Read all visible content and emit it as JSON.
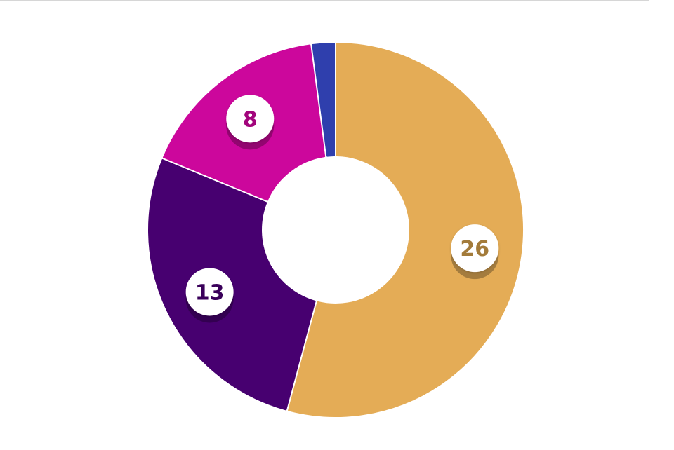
{
  "chart_data": {
    "type": "pie",
    "variant": "donut",
    "title": "",
    "start_angle_deg": 0,
    "direction": "clockwise",
    "slices": [
      {
        "value": 26,
        "label": "26",
        "color": "#E4AC56",
        "label_color": "#A37B3A",
        "show_label": true
      },
      {
        "value": 13,
        "label": "13",
        "color": "#470070",
        "label_color": "#3A005A",
        "show_label": true
      },
      {
        "value": 8,
        "label": "8",
        "color": "#CC079C",
        "label_color": "#A2057C",
        "show_label": true
      },
      {
        "value": 1,
        "label": "1",
        "color": "#2F3FAD",
        "label_color": "#2F3FAD",
        "show_label": false
      }
    ],
    "background": "#FFFFFF",
    "legend": "none"
  }
}
